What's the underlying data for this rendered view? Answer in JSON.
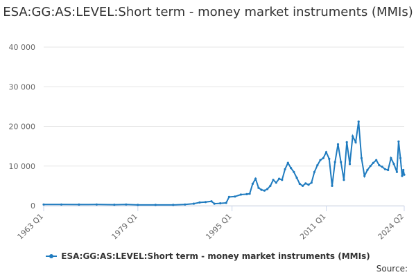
{
  "chart_data": {
    "type": "line",
    "title": "ESA:GG:AS:LEVEL:Short term - money market instruments (MMIs)",
    "xlabel": "",
    "ylabel": "",
    "ylim": [
      0,
      40000
    ],
    "y_ticks": [
      "0",
      "10 000",
      "20 000",
      "30 000",
      "40 000"
    ],
    "y_tick_values": [
      0,
      10000,
      20000,
      30000,
      40000
    ],
    "x_ticks": [
      "1963 Q1",
      "1979 Q1",
      "1995 Q1",
      "2011 Q1",
      "2024 Q2"
    ],
    "x_tick_values": [
      1963.0,
      1979.0,
      1995.0,
      2011.0,
      2024.25
    ],
    "xlim": [
      1963.0,
      2024.25
    ],
    "grid": "horizontal",
    "legend_position": "bottom",
    "series": [
      {
        "name": "ESA:GG:AS:LEVEL:Short term - money market instruments (MMIs)",
        "color": "#1f7bbf",
        "points": [
          [
            1963.0,
            300
          ],
          [
            1966.0,
            300
          ],
          [
            1969.0,
            280
          ],
          [
            1972.0,
            300
          ],
          [
            1975.0,
            250
          ],
          [
            1977.0,
            300
          ],
          [
            1979.0,
            200
          ],
          [
            1982.0,
            200
          ],
          [
            1985.0,
            200
          ],
          [
            1987.0,
            300
          ],
          [
            1988.5,
            500
          ],
          [
            1989.5,
            800
          ],
          [
            1990.5,
            900
          ],
          [
            1991.5,
            1100
          ],
          [
            1992.0,
            500
          ],
          [
            1993.0,
            600
          ],
          [
            1994.0,
            700
          ],
          [
            1994.5,
            2200
          ],
          [
            1995.5,
            2300
          ],
          [
            1996.5,
            2800
          ],
          [
            1997.5,
            2900
          ],
          [
            1998.0,
            3000
          ],
          [
            1998.5,
            5500
          ],
          [
            1999.0,
            6800
          ],
          [
            1999.5,
            4500
          ],
          [
            2000.0,
            4000
          ],
          [
            2000.5,
            3800
          ],
          [
            2001.0,
            4200
          ],
          [
            2001.5,
            5000
          ],
          [
            2002.0,
            6500
          ],
          [
            2002.5,
            5800
          ],
          [
            2003.0,
            6800
          ],
          [
            2003.5,
            6500
          ],
          [
            2004.0,
            9200
          ],
          [
            2004.5,
            10800
          ],
          [
            2005.0,
            9500
          ],
          [
            2005.5,
            8500
          ],
          [
            2006.0,
            7000
          ],
          [
            2006.5,
            5500
          ],
          [
            2007.0,
            5000
          ],
          [
            2007.5,
            5600
          ],
          [
            2008.0,
            5300
          ],
          [
            2008.5,
            5800
          ],
          [
            2009.0,
            8500
          ],
          [
            2009.5,
            10200
          ],
          [
            2010.0,
            11500
          ],
          [
            2010.5,
            12000
          ],
          [
            2011.0,
            13500
          ],
          [
            2011.5,
            11800
          ],
          [
            2012.0,
            5000
          ],
          [
            2012.5,
            11000
          ],
          [
            2013.0,
            15500
          ],
          [
            2013.5,
            11000
          ],
          [
            2014.0,
            6500
          ],
          [
            2014.5,
            16000
          ],
          [
            2015.0,
            10500
          ],
          [
            2015.5,
            17500
          ],
          [
            2016.0,
            16000
          ],
          [
            2016.5,
            21200
          ],
          [
            2017.0,
            12000
          ],
          [
            2017.5,
            7500
          ],
          [
            2018.0,
            9000
          ],
          [
            2018.5,
            10000
          ],
          [
            2019.0,
            10800
          ],
          [
            2019.5,
            11500
          ],
          [
            2020.0,
            10200
          ],
          [
            2020.5,
            9800
          ],
          [
            2021.0,
            9200
          ],
          [
            2021.5,
            9000
          ],
          [
            2022.0,
            12000
          ],
          [
            2022.5,
            10500
          ],
          [
            2023.0,
            8500
          ],
          [
            2023.3,
            16200
          ],
          [
            2023.6,
            12000
          ],
          [
            2023.9,
            7500
          ],
          [
            2024.1,
            9000
          ],
          [
            2024.25,
            7800
          ]
        ]
      }
    ]
  },
  "legend": {
    "label": "ESA:GG:AS:LEVEL:Short term - money market instruments (MMIs)"
  },
  "source": {
    "label": "Source:"
  }
}
